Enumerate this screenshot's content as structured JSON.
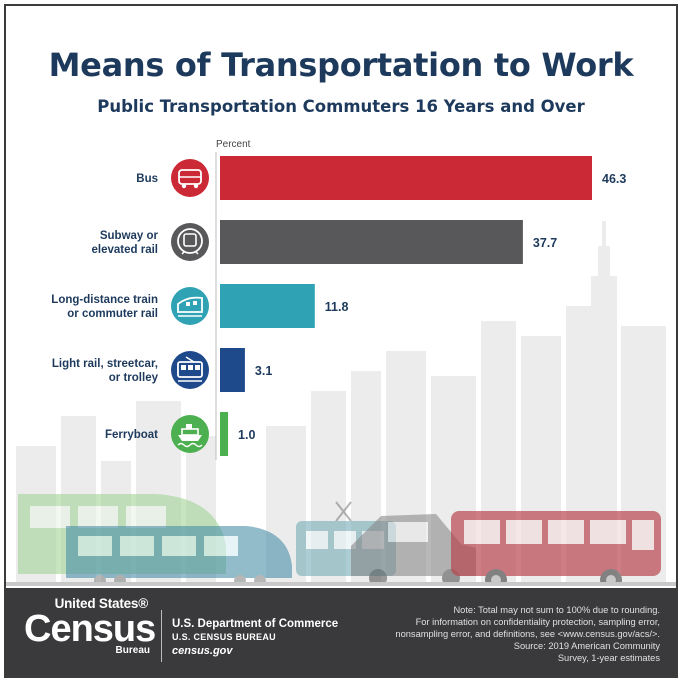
{
  "title": "Means of Transportation to Work",
  "subtitle": "Public Transportation Commuters 16 Years and Over",
  "colors": {
    "title": "#1d3a5c",
    "bus": "#cc2936",
    "subway": "#58585a",
    "train": "#2fa3b4",
    "light_rail": "#1e4a8c",
    "ferry": "#4caf50",
    "footer": "#3a3a3c"
  },
  "chart_data": {
    "type": "bar",
    "orientation": "horizontal",
    "axis_title": "Percent",
    "categories": [
      "Bus",
      "Subway or elevated rail",
      "Long-distance train or commuter rail",
      "Light rail, streetcar, or trolley",
      "Ferryboat"
    ],
    "label_lines": [
      [
        "Bus"
      ],
      [
        "Subway or",
        "elevated rail"
      ],
      [
        "Long-distance train",
        "or commuter rail"
      ],
      [
        "Light rail, streetcar,",
        "or trolley"
      ],
      [
        "Ferryboat"
      ]
    ],
    "values": [
      46.3,
      37.7,
      11.8,
      3.1,
      1.0
    ],
    "value_labels": [
      "46.3",
      "37.7",
      "11.8",
      "3.1",
      "1.0"
    ],
    "icons": [
      "bus-icon",
      "subway-icon",
      "train-icon",
      "streetcar-icon",
      "ferry-icon"
    ],
    "bar_colors": [
      "#cc2936",
      "#58585a",
      "#2fa3b4",
      "#1e4a8c",
      "#4caf50"
    ],
    "xlim": [
      0,
      46.3
    ],
    "grid": false,
    "legend": "none"
  },
  "footer": {
    "logo_top": "United States®",
    "logo_main": "Census",
    "logo_bottom": "Bureau",
    "dept_line1": "U.S. Department of Commerce",
    "dept_line2": "U.S. CENSUS BUREAU",
    "dept_line3": "census.gov",
    "note1": "Note: Total may not sum to 100% due to rounding.",
    "note2": "For information on confidentiality protection, sampling error,",
    "note3": "nonsampling error, and definitions, see <www.census.gov/acs/>.",
    "note4": "Source: 2019 American Community",
    "note5": "Survey, 1-year estimates"
  }
}
